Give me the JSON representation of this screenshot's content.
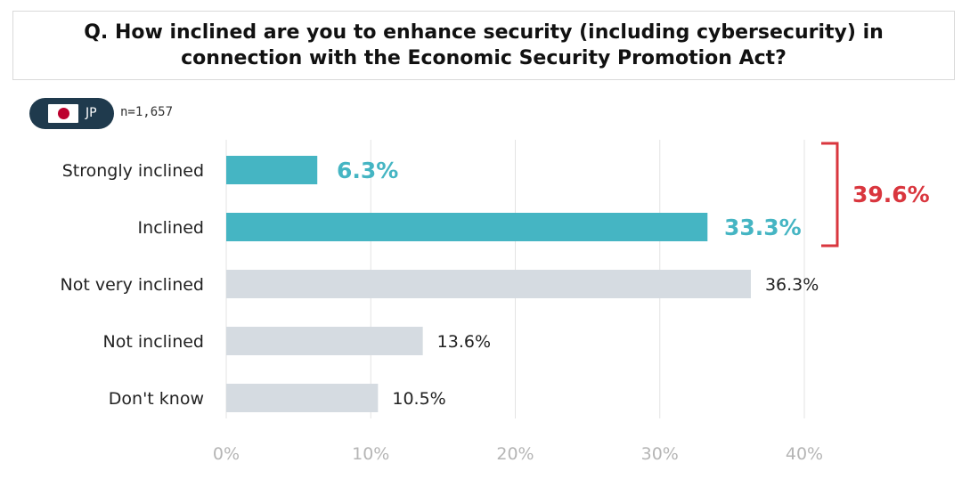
{
  "header": {
    "title": "Q. How inclined are you to enhance security (including cybersecurity) in connection with the Economic Security Promotion Act?"
  },
  "sample": {
    "country": "JP",
    "n_label": "n=1,657"
  },
  "chart_data": {
    "type": "bar",
    "orientation": "horizontal",
    "title": "Q. How inclined are you to enhance security (including cybersecurity) in connection with the Economic Security Promotion Act?",
    "categories": [
      "Strongly inclined",
      "Inclined",
      "Not very inclined",
      "Not inclined",
      "Don't know"
    ],
    "values": [
      6.3,
      33.3,
      36.3,
      13.6,
      10.5
    ],
    "value_labels": [
      "6.3%",
      "33.3%",
      "36.3%",
      "13.6%",
      "10.5%"
    ],
    "highlighted": [
      true,
      true,
      false,
      false,
      false
    ],
    "xlim": [
      0,
      40
    ],
    "xticks": [
      0,
      10,
      20,
      30,
      40
    ],
    "xtick_labels": [
      "0%",
      "10%",
      "20%",
      "30%",
      "40%"
    ],
    "grid": true,
    "bracket": {
      "covers": [
        "Strongly inclined",
        "Inclined"
      ],
      "label": "39.6%"
    },
    "colors": {
      "highlight": "#45b5c3",
      "normal": "#d5dbe1",
      "bracket": "#d9363e",
      "grid": "#e3e3e3",
      "tick_label": "#b5b5b5"
    }
  }
}
